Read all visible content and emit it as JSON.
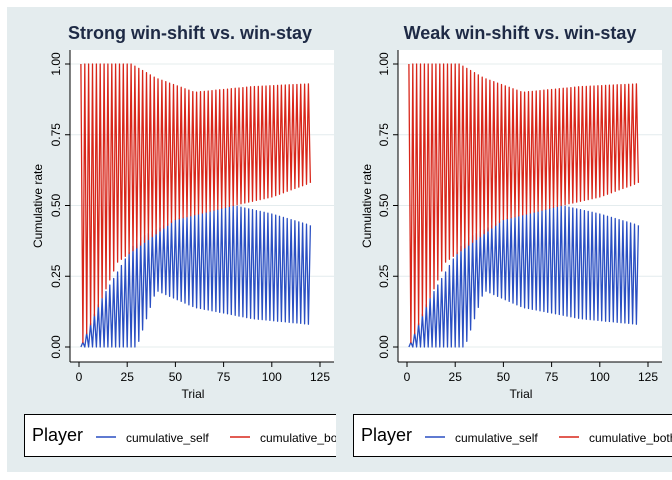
{
  "colors": {
    "background": "#e4ecee",
    "plot_bg": "#ffffff",
    "grid": "#e4ecee",
    "self": "#2a4fc2",
    "other": "#d8261a",
    "title": "#1e2a45"
  },
  "legend": {
    "title": "Player",
    "items": [
      "cumulative_self",
      "cumulative_both"
    ]
  },
  "chart_data": [
    {
      "type": "line",
      "title": "Strong win-shift vs. win-stay",
      "xlabel": "Trial",
      "ylabel": "Cumulative rate",
      "xlim": [
        0,
        125
      ],
      "ylim": [
        0,
        1
      ],
      "xticks": [
        "0",
        "25",
        "50",
        "75",
        "100",
        "125"
      ],
      "yticks": [
        "0.00",
        "0.25",
        "0.50",
        "0.75",
        "1.00"
      ],
      "series": [
        {
          "name": "cumulative_self",
          "color": "#2a4fc2",
          "x_range": [
            1,
            120
          ],
          "low_trend": [
            [
              1,
              0
            ],
            [
              30,
              0
            ],
            [
              40,
              0.2
            ],
            [
              60,
              0.14
            ],
            [
              90,
              0.1
            ],
            [
              120,
              0.08
            ]
          ],
          "high_trend": [
            [
              1,
              0
            ],
            [
              10,
              0.15
            ],
            [
              30,
              0.38
            ],
            [
              50,
              0.45
            ],
            [
              80,
              0.5
            ],
            [
              100,
              0.47
            ],
            [
              120,
              0.43
            ]
          ]
        },
        {
          "name": "cumulative_both",
          "color": "#d8261a",
          "x_range": [
            1,
            120
          ],
          "low_trend": [
            [
              1,
              0
            ],
            [
              20,
              0.3
            ],
            [
              50,
              0.45
            ],
            [
              80,
              0.5
            ],
            [
              100,
              0.53
            ],
            [
              120,
              0.58
            ]
          ],
          "high_trend": [
            [
              1,
              1
            ],
            [
              27,
              1
            ],
            [
              40,
              0.95
            ],
            [
              60,
              0.9
            ],
            [
              90,
              0.92
            ],
            [
              120,
              0.93
            ]
          ]
        }
      ]
    },
    {
      "type": "line",
      "title": "Weak win-shift vs. win-stay",
      "xlabel": "Trial",
      "ylabel": "Cumulative rate",
      "xlim": [
        0,
        125
      ],
      "ylim": [
        0,
        1
      ],
      "xticks": [
        "0",
        "25",
        "50",
        "75",
        "100",
        "125"
      ],
      "yticks": [
        "0.00",
        "0.25",
        "0.50",
        "0.75",
        "1.00"
      ],
      "series": [
        {
          "name": "cumulative_self",
          "color": "#2a4fc2",
          "x_range": [
            1,
            120
          ],
          "low_trend": [
            [
              1,
              0
            ],
            [
              30,
              0
            ],
            [
              40,
              0.2
            ],
            [
              60,
              0.14
            ],
            [
              90,
              0.1
            ],
            [
              120,
              0.08
            ]
          ],
          "high_trend": [
            [
              1,
              0
            ],
            [
              10,
              0.15
            ],
            [
              30,
              0.38
            ],
            [
              50,
              0.45
            ],
            [
              80,
              0.5
            ],
            [
              100,
              0.47
            ],
            [
              120,
              0.43
            ]
          ]
        },
        {
          "name": "cumulative_both",
          "color": "#d8261a",
          "x_range": [
            1,
            120
          ],
          "low_trend": [
            [
              1,
              0
            ],
            [
              20,
              0.3
            ],
            [
              50,
              0.45
            ],
            [
              80,
              0.5
            ],
            [
              100,
              0.53
            ],
            [
              120,
              0.58
            ]
          ],
          "high_trend": [
            [
              1,
              1
            ],
            [
              27,
              1
            ],
            [
              40,
              0.95
            ],
            [
              60,
              0.9
            ],
            [
              90,
              0.92
            ],
            [
              120,
              0.93
            ]
          ]
        }
      ]
    }
  ]
}
